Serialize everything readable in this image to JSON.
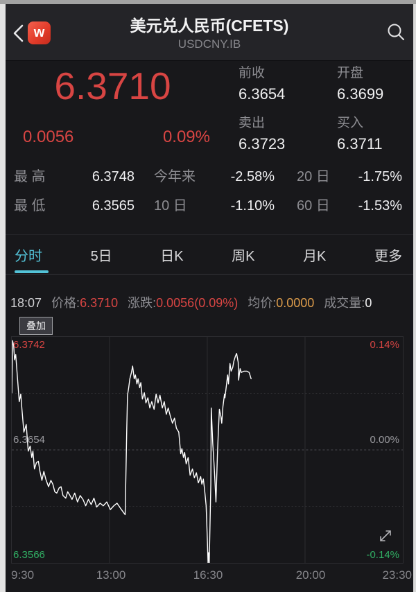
{
  "header": {
    "title": "美元兑人民币(CFETS)",
    "subtitle": "USDCNY.IB",
    "logo_text": "w"
  },
  "quote": {
    "last": "6.3710",
    "change": "0.0056",
    "change_pct": "0.09%",
    "fields": [
      {
        "label": "前收",
        "value": "6.3654"
      },
      {
        "label": "开盘",
        "value": "6.3699"
      },
      {
        "label": "卖出",
        "value": "6.3723"
      },
      {
        "label": "买入",
        "value": "6.3711"
      }
    ]
  },
  "stats": {
    "rows": [
      [
        {
          "label": "最 高",
          "value": "6.3748"
        },
        {
          "label": "今年来",
          "value": "-2.58%"
        },
        {
          "label": "20 日",
          "value": "-1.75%"
        }
      ],
      [
        {
          "label": "最 低",
          "value": "6.3565"
        },
        {
          "label": "10 日",
          "value": "-1.10%"
        },
        {
          "label": "60 日",
          "value": "-1.53%"
        }
      ]
    ]
  },
  "tabs": [
    {
      "label": "分时",
      "active": true
    },
    {
      "label": "5日",
      "active": false
    },
    {
      "label": "日K",
      "active": false
    },
    {
      "label": "周K",
      "active": false
    },
    {
      "label": "月K",
      "active": false
    },
    {
      "label": "更多",
      "active": false
    }
  ],
  "ticker": {
    "time": "18:07",
    "price_label": "价格:",
    "price": "6.3710",
    "change_label": "涨跌:",
    "change": "0.0056(0.09%)",
    "avg_label": "均价:",
    "avg": "0.0000",
    "vol_label": "成交量:",
    "vol": "0"
  },
  "chart": {
    "overlay_button": "叠加"
  },
  "colors": {
    "up_red": "#d84543",
    "down_green": "#31af64",
    "accent_cyan": "#53c3d8",
    "avg_orange": "#dd9c4b",
    "line_white": "#ffffff"
  },
  "chart_data": {
    "type": "line",
    "title": "USDCNY.IB 分时走势",
    "x_ticks": [
      "9:30",
      "13:00",
      "16:30",
      "20:00",
      "23:30"
    ],
    "y_left_labels": [
      {
        "text": "6.3742",
        "color": "red"
      },
      {
        "text": "6.3654",
        "color": "gray"
      },
      {
        "text": "6.3566",
        "color": "green"
      }
    ],
    "y_right_labels": [
      {
        "text": "0.14%",
        "color": "red"
      },
      {
        "text": "0.00%",
        "color": "gray"
      },
      {
        "text": "-0.14%",
        "color": "green"
      }
    ],
    "prev_close": 6.3654,
    "ylim": [
      6.3565,
      6.3743
    ],
    "grid": true,
    "series": [
      {
        "name": "price",
        "points": [
          [
            0.0,
            6.3699
          ],
          [
            0.002,
            6.374
          ],
          [
            0.005,
            6.3736
          ],
          [
            0.007,
            6.3725
          ],
          [
            0.01,
            6.3729
          ],
          [
            0.014,
            6.3713
          ],
          [
            0.019,
            6.3692
          ],
          [
            0.023,
            6.3698
          ],
          [
            0.026,
            6.3686
          ],
          [
            0.031,
            6.3668
          ],
          [
            0.037,
            6.3674
          ],
          [
            0.042,
            6.3653
          ],
          [
            0.047,
            6.3657
          ],
          [
            0.051,
            6.3648
          ],
          [
            0.054,
            6.3653
          ],
          [
            0.058,
            6.3639
          ],
          [
            0.063,
            6.3644
          ],
          [
            0.068,
            6.3645
          ],
          [
            0.072,
            6.3637
          ],
          [
            0.077,
            6.363
          ],
          [
            0.082,
            6.3637
          ],
          [
            0.087,
            6.3631
          ],
          [
            0.094,
            6.3625
          ],
          [
            0.1,
            6.363
          ],
          [
            0.105,
            6.3627
          ],
          [
            0.11,
            6.3621
          ],
          [
            0.115,
            6.362
          ],
          [
            0.121,
            6.3624
          ],
          [
            0.126,
            6.3625
          ],
          [
            0.131,
            6.3618
          ],
          [
            0.138,
            6.3616
          ],
          [
            0.143,
            6.3621
          ],
          [
            0.149,
            6.3618
          ],
          [
            0.154,
            6.3615
          ],
          [
            0.161,
            6.362
          ],
          [
            0.168,
            6.3613
          ],
          [
            0.175,
            6.3618
          ],
          [
            0.182,
            6.3615
          ],
          [
            0.189,
            6.361
          ],
          [
            0.196,
            6.3615
          ],
          [
            0.203,
            6.3611
          ],
          [
            0.21,
            6.3616
          ],
          [
            0.217,
            6.3609
          ],
          [
            0.226,
            6.3612
          ],
          [
            0.234,
            6.361
          ],
          [
            0.243,
            6.3613
          ],
          [
            0.252,
            6.3607
          ],
          [
            0.261,
            6.361
          ],
          [
            0.269,
            6.3612
          ],
          [
            0.278,
            6.3608
          ],
          [
            0.285,
            6.3605
          ],
          [
            0.29,
            6.3603
          ],
          [
            0.294,
            6.367
          ],
          [
            0.296,
            6.3697
          ],
          [
            0.299,
            6.3703
          ],
          [
            0.302,
            6.371
          ],
          [
            0.306,
            6.3715
          ],
          [
            0.309,
            6.372
          ],
          [
            0.313,
            6.371
          ],
          [
            0.316,
            6.3713
          ],
          [
            0.32,
            6.3706
          ],
          [
            0.323,
            6.371
          ],
          [
            0.327,
            6.3703
          ],
          [
            0.33,
            6.3707
          ],
          [
            0.334,
            6.3694
          ],
          [
            0.339,
            6.3699
          ],
          [
            0.343,
            6.3691
          ],
          [
            0.348,
            6.3695
          ],
          [
            0.353,
            6.3687
          ],
          [
            0.358,
            6.3692
          ],
          [
            0.364,
            6.3686
          ],
          [
            0.369,
            6.3698
          ],
          [
            0.374,
            6.3691
          ],
          [
            0.379,
            6.3697
          ],
          [
            0.385,
            6.3687
          ],
          [
            0.39,
            6.3692
          ],
          [
            0.395,
            6.3682
          ],
          [
            0.4,
            6.3687
          ],
          [
            0.406,
            6.368
          ],
          [
            0.411,
            6.3675
          ],
          [
            0.416,
            6.3679
          ],
          [
            0.421,
            6.3671
          ],
          [
            0.427,
            6.3668
          ],
          [
            0.432,
            6.3651
          ],
          [
            0.435,
            6.3655
          ],
          [
            0.439,
            6.3648
          ],
          [
            0.442,
            6.3652
          ],
          [
            0.446,
            6.3643
          ],
          [
            0.451,
            6.3648
          ],
          [
            0.456,
            6.3634
          ],
          [
            0.462,
            6.3639
          ],
          [
            0.467,
            6.3632
          ],
          [
            0.472,
            6.3636
          ],
          [
            0.477,
            6.3628
          ],
          [
            0.483,
            6.3633
          ],
          [
            0.486,
            6.3627
          ],
          [
            0.49,
            6.3631
          ],
          [
            0.493,
            6.3623
          ],
          [
            0.497,
            6.361
          ],
          [
            0.5,
            6.3584
          ],
          [
            0.502,
            6.3565
          ],
          [
            0.503,
            6.3573
          ],
          [
            0.505,
            6.3565
          ],
          [
            0.509,
            6.3627
          ],
          [
            0.51,
            6.3687
          ],
          [
            0.514,
            6.3659
          ],
          [
            0.517,
            6.3644
          ],
          [
            0.519,
            6.3632
          ],
          [
            0.522,
            6.3613
          ],
          [
            0.524,
            6.3632
          ],
          [
            0.526,
            6.3651
          ],
          [
            0.528,
            6.3666
          ],
          [
            0.531,
            6.3686
          ],
          [
            0.535,
            6.368
          ],
          [
            0.537,
            6.3675
          ],
          [
            0.54,
            6.3688
          ],
          [
            0.544,
            6.3698
          ],
          [
            0.545,
            6.3695
          ],
          [
            0.549,
            6.3705
          ],
          [
            0.552,
            6.3713
          ],
          [
            0.554,
            6.3706
          ],
          [
            0.558,
            6.3722
          ],
          [
            0.561,
            6.3716
          ],
          [
            0.565,
            6.3719
          ],
          [
            0.568,
            6.3724
          ],
          [
            0.572,
            6.3728
          ],
          [
            0.575,
            6.373
          ],
          [
            0.579,
            6.3723
          ],
          [
            0.58,
            6.3709
          ],
          [
            0.584,
            6.3718
          ],
          [
            0.587,
            6.3715
          ],
          [
            0.594,
            6.3716
          ],
          [
            0.601,
            6.3716
          ],
          [
            0.607,
            6.3715
          ],
          [
            0.612,
            6.371
          ]
        ]
      }
    ]
  }
}
